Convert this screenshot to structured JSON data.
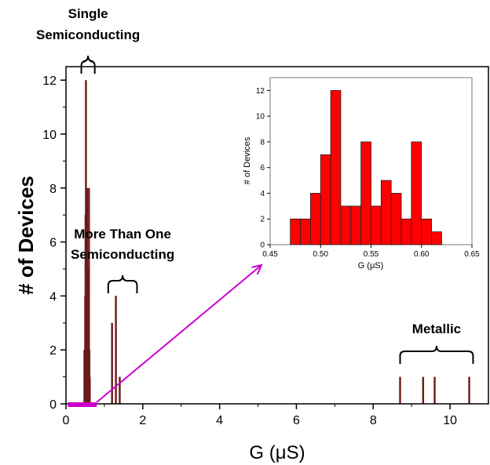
{
  "chart_data": [
    {
      "type": "bar",
      "role": "main",
      "xlabel": "G (μS)",
      "ylabel": "# of Devices",
      "xlim": [
        0,
        11
      ],
      "ylim": [
        0,
        12.5
      ],
      "xticks": [
        "0",
        "2",
        "4",
        "6",
        "8",
        "10"
      ],
      "yticks": [
        "0",
        "2",
        "4",
        "6",
        "8",
        "10",
        "12"
      ],
      "bar_color": "#6b1a1a",
      "series": [
        {
          "bars": [
            {
              "x": 0.48,
              "y": 2
            },
            {
              "x": 0.49,
              "y": 2
            },
            {
              "x": 0.5,
              "y": 4
            },
            {
              "x": 0.51,
              "y": 7
            },
            {
              "x": 0.52,
              "y": 12
            },
            {
              "x": 0.53,
              "y": 3
            },
            {
              "x": 0.54,
              "y": 3
            },
            {
              "x": 0.55,
              "y": 8
            },
            {
              "x": 0.56,
              "y": 3
            },
            {
              "x": 0.57,
              "y": 5
            },
            {
              "x": 0.58,
              "y": 4
            },
            {
              "x": 0.59,
              "y": 2
            },
            {
              "x": 0.6,
              "y": 8
            },
            {
              "x": 0.61,
              "y": 2
            },
            {
              "x": 0.62,
              "y": 1
            },
            {
              "x": 1.2,
              "y": 3
            },
            {
              "x": 1.3,
              "y": 4
            },
            {
              "x": 1.4,
              "y": 1
            },
            {
              "x": 8.7,
              "y": 1
            },
            {
              "x": 9.3,
              "y": 1
            },
            {
              "x": 9.6,
              "y": 1
            },
            {
              "x": 10.5,
              "y": 1
            }
          ]
        }
      ],
      "annotations": [
        {
          "text_lines": [
            "Single",
            "Semiconducting"
          ],
          "range": [
            0.4,
            0.75
          ]
        },
        {
          "text_lines": [
            "More Than One",
            "Semiconducting"
          ],
          "range": [
            1.1,
            1.85
          ]
        },
        {
          "text_lines": [
            "Metallic"
          ],
          "range": [
            8.7,
            10.6
          ]
        }
      ],
      "zoom_range": [
        0.48,
        0.8
      ],
      "zoom_color": "#cc00cc"
    },
    {
      "type": "bar",
      "role": "inset",
      "xlabel": "G (μS)",
      "ylabel": "# of Devices",
      "xlim": [
        0.45,
        0.65
      ],
      "ylim": [
        0,
        13
      ],
      "xticks": [
        "0.45",
        "0.50",
        "0.55",
        "0.60",
        "0.65"
      ],
      "yticks": [
        "0",
        "2",
        "4",
        "6",
        "8",
        "10",
        "12"
      ],
      "bar_color": "#ff0000",
      "bin_width": 0.01,
      "series": [
        {
          "bins": [
            0.475,
            0.485,
            0.495,
            0.505,
            0.515,
            0.525,
            0.535,
            0.545,
            0.555,
            0.565,
            0.575,
            0.585,
            0.595,
            0.605,
            0.615
          ],
          "values": [
            2,
            2,
            4,
            7,
            12,
            3,
            3,
            8,
            3,
            5,
            4,
            2,
            8,
            2,
            1
          ]
        }
      ]
    }
  ]
}
